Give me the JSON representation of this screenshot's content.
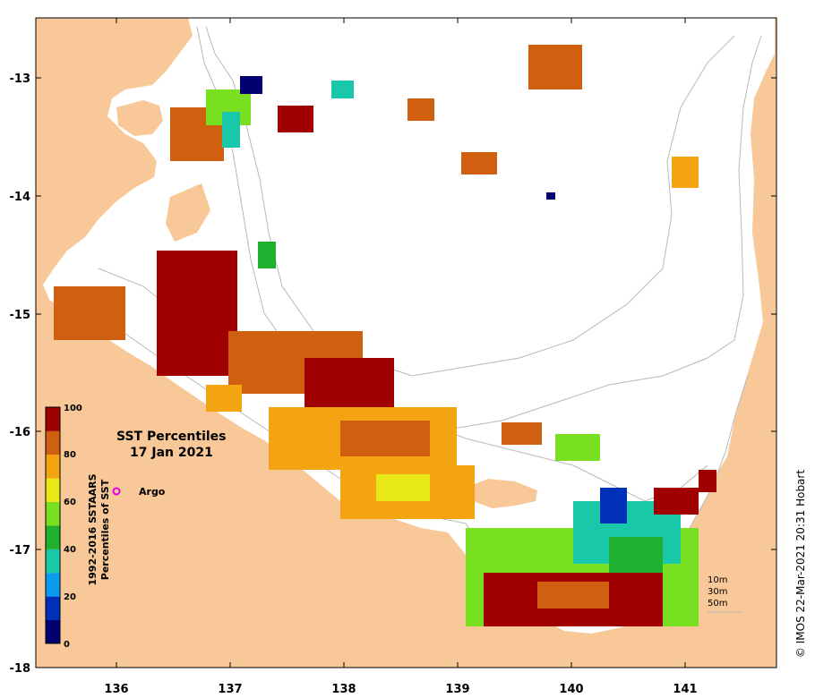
{
  "title_line1": "SST Percentiles",
  "title_line2": "17 Jan 2021",
  "colorbar": {
    "title_line1": "1992-2016 SSTAARS",
    "title_line2": "Percentiles of SST",
    "ticks": [
      "0",
      "20",
      "40",
      "60",
      "80",
      "100"
    ],
    "colors": [
      "#000070",
      "#0030b8",
      "#0a9cf0",
      "#18c8a8",
      "#20b030",
      "#78e020",
      "#e8e818",
      "#f4a410",
      "#d06010",
      "#a00000"
    ]
  },
  "legend": {
    "argo_label": "Argo",
    "argo_color": "#e000e0"
  },
  "contour_labels": [
    "10m",
    "30m",
    "50m"
  ],
  "credit": "© IMOS 22-Mar-2021 20:31 Hobart",
  "axes": {
    "x_ticks": [
      "136",
      "137",
      "138",
      "139",
      "140",
      "141"
    ],
    "y_ticks": [
      "-13",
      "-14",
      "-15",
      "-16",
      "-17",
      "-18"
    ]
  },
  "colors": {
    "land": "#f8c898",
    "sea": "#ffffff",
    "isobath": "#b8b8b8"
  }
}
